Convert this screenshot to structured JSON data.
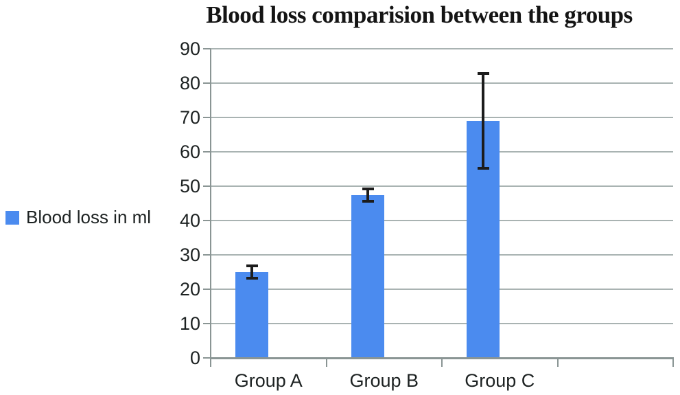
{
  "page": {
    "background": "#ffffff"
  },
  "chart_data": {
    "type": "bar",
    "title": "Blood loss comparision between the groups",
    "categories": [
      "Group A",
      "Group B",
      "Group C"
    ],
    "series": [
      {
        "name": "Blood loss in ml",
        "values": [
          25,
          47.5,
          69
        ],
        "errors": [
          2,
          2,
          14
        ],
        "color": "#4b8bef"
      }
    ],
    "xlabel": "",
    "ylabel": "",
    "ylim": [
      0,
      90
    ],
    "yticks": [
      0,
      10,
      20,
      30,
      40,
      50,
      60,
      70,
      80,
      90
    ],
    "grid": "horizontal",
    "num_category_slots": 4,
    "legend": {
      "position": "left",
      "label": "Blood loss in ml",
      "swatch_color": "#4b8bef"
    },
    "colors": {
      "bar": "#4b8bef",
      "error_bar": "#1c1c1c",
      "gridline": "#a9b3b2",
      "axis": "#8a9594",
      "text": "#1c2121",
      "title": "#141414"
    }
  }
}
